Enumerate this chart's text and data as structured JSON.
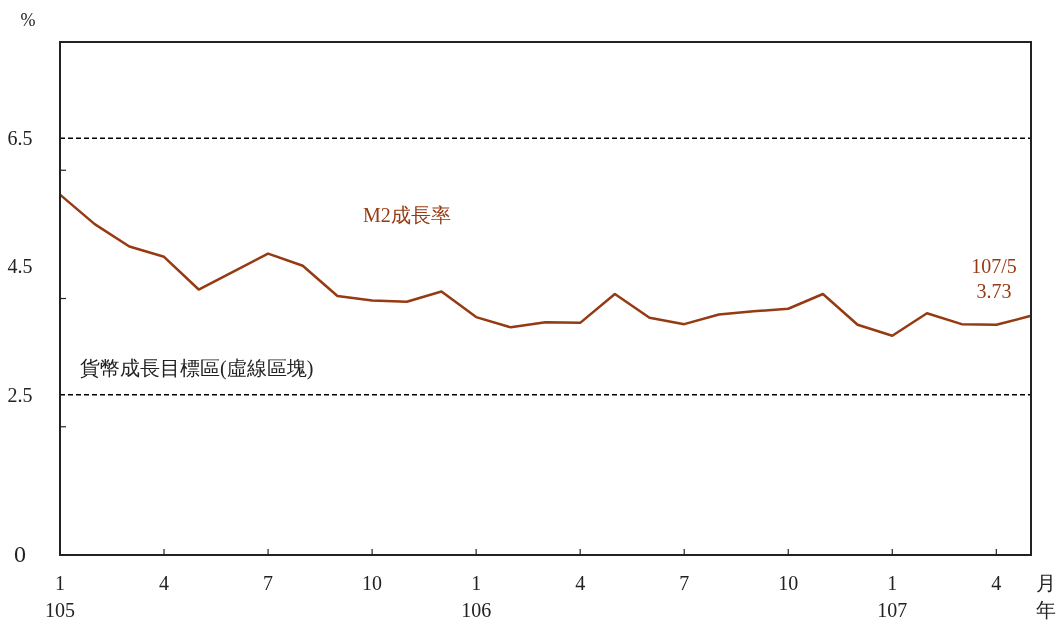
{
  "chart_data": {
    "type": "line",
    "ylabel": "%",
    "xlabel": "月年",
    "categories": [
      "1\n105",
      null,
      null,
      "4",
      null,
      null,
      "7",
      null,
      null,
      "10",
      null,
      null,
      "1\n106",
      null,
      null,
      "4",
      null,
      null,
      "7",
      null,
      null,
      "10",
      null,
      null,
      "1\n107",
      null,
      null,
      "4",
      null
    ],
    "series": [
      {
        "name": "M2成長率",
        "color": "#953a12",
        "values": [
          5.62,
          5.16,
          4.81,
          4.65,
          4.14,
          4.42,
          4.7,
          4.51,
          4.04,
          3.97,
          3.95,
          4.11,
          3.71,
          3.55,
          3.63,
          3.62,
          4.07,
          3.7,
          3.6,
          3.75,
          3.8,
          3.84,
          4.07,
          3.59,
          3.42,
          3.77,
          3.6,
          3.59,
          3.73
        ],
        "value_labels": [
          null,
          null,
          null,
          null,
          null,
          null,
          null,
          null,
          null,
          null,
          null,
          null,
          null,
          null,
          null,
          null,
          null,
          null,
          null,
          null,
          null,
          null,
          null,
          null,
          null,
          null,
          null,
          null,
          "3.73"
        ]
      }
    ],
    "ylim": [
      0,
      8
    ],
    "yticks": [
      0,
      {
        "value": 2,
        "label": null
      },
      2.5,
      {
        "value": 4,
        "label": null
      },
      4.5,
      {
        "value": 6,
        "label": null
      },
      6.5
    ],
    "ref_lines": [
      {
        "axis": "y",
        "value": 6.5,
        "color": "#000000",
        "line_style": "dashed"
      },
      {
        "axis": "y",
        "value": 2.5,
        "color": "#000000",
        "line_style": "dashed"
      }
    ],
    "annotations": [
      "貨幣成長目標區(虛線區塊)",
      "107/5"
    ],
    "line_style": "solid",
    "marker": "none"
  }
}
